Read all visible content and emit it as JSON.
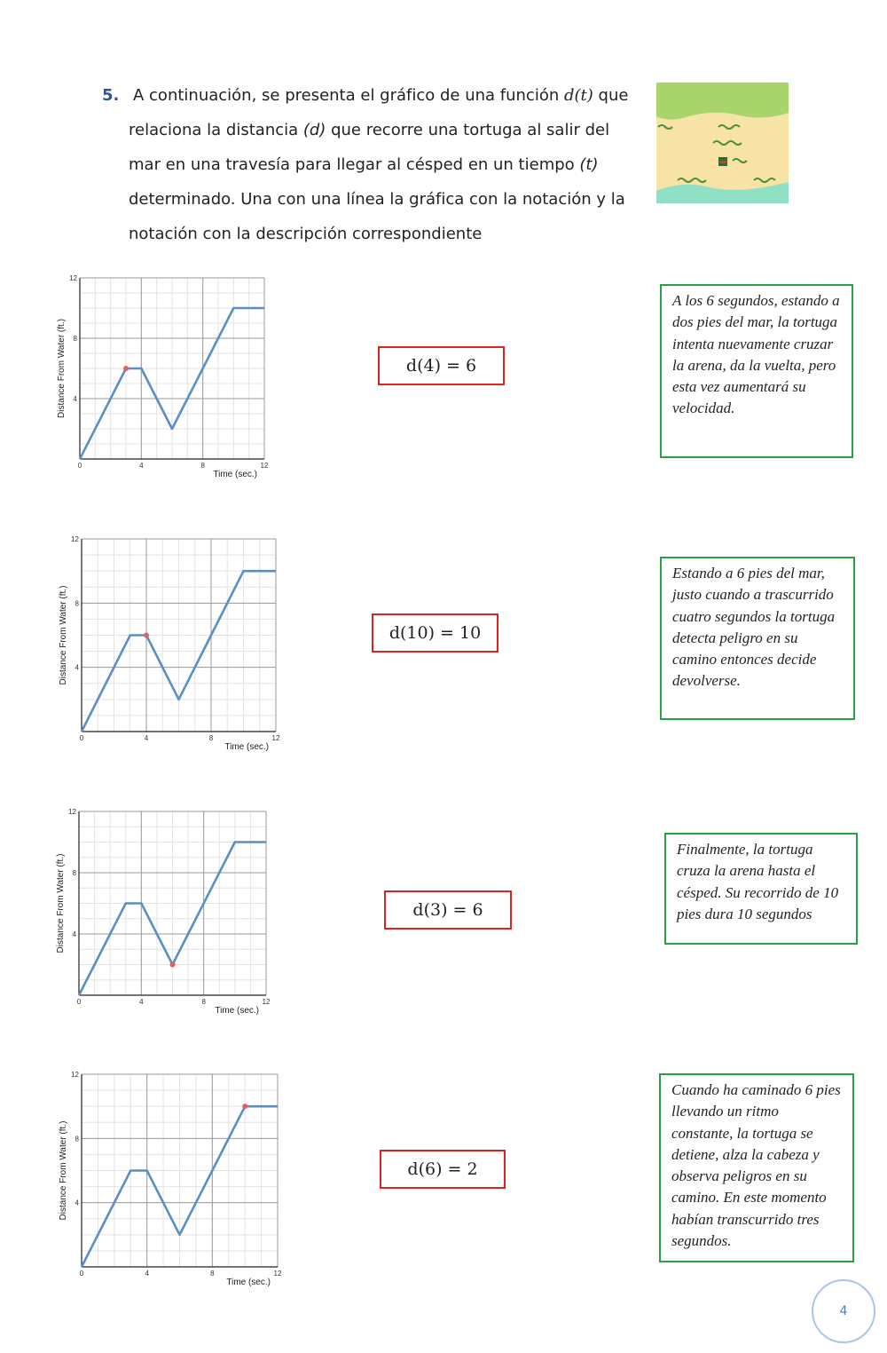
{
  "question": {
    "number": "5.",
    "text_1": "A continuación, se presenta el gráfico de una función ",
    "math_1": "d(t)",
    "text_2": " que relaciona la distancia ",
    "italic_1": "(d)",
    "text_3": " que recorre una tortuga al salir del mar en una travesía para llegar al césped en un tiempo ",
    "italic_2": "(t)",
    "text_4": " determinado. Una con una línea la gráfica con la notación y la notación con la descripción correspondiente"
  },
  "chart_data": [
    {
      "type": "line",
      "x_label": "Time (sec.)",
      "y_label": "Distance From Water (ft.)",
      "x": [
        0,
        3,
        4,
        6,
        10,
        12
      ],
      "values": [
        0,
        6,
        6,
        2,
        10,
        10
      ],
      "color": "#5b8ec4",
      "xlim": [
        0,
        12
      ],
      "ylim": [
        0,
        12
      ],
      "xticks": [
        0,
        4,
        8,
        12
      ],
      "yticks": [
        4,
        8,
        12
      ],
      "grid": true,
      "highlight": {
        "x": 3,
        "y": 6,
        "color": "#e06060"
      }
    },
    {
      "type": "line",
      "x_label": "Time (sec.)",
      "y_label": "Distance From Water (ft.)",
      "x": [
        0,
        3,
        4,
        6,
        10,
        12
      ],
      "values": [
        0,
        6,
        6,
        2,
        10,
        10
      ],
      "color": "#5b8ec4",
      "xlim": [
        0,
        12
      ],
      "ylim": [
        0,
        12
      ],
      "xticks": [
        0,
        4,
        8,
        12
      ],
      "yticks": [
        4,
        8,
        12
      ],
      "grid": true,
      "highlight": {
        "x": 4,
        "y": 6,
        "color": "#e06060"
      }
    },
    {
      "type": "line",
      "x_label": "Time (sec.)",
      "y_label": "Distance From Water (ft.)",
      "x": [
        0,
        3,
        4,
        6,
        10,
        12
      ],
      "values": [
        0,
        6,
        6,
        2,
        10,
        10
      ],
      "color": "#5b8ec4",
      "xlim": [
        0,
        12
      ],
      "ylim": [
        0,
        12
      ],
      "xticks": [
        0,
        4,
        8,
        12
      ],
      "yticks": [
        4,
        8,
        12
      ],
      "grid": true,
      "highlight": {
        "x": 6,
        "y": 2,
        "color": "#e06060"
      }
    },
    {
      "type": "line",
      "x_label": "Time (sec.)",
      "y_label": "Distance From Water (ft.)",
      "x": [
        0,
        3,
        4,
        6,
        10,
        12
      ],
      "values": [
        0,
        6,
        6,
        2,
        10,
        10
      ],
      "color": "#5b8ec4",
      "xlim": [
        0,
        12
      ],
      "ylim": [
        0,
        12
      ],
      "xticks": [
        0,
        4,
        8,
        12
      ],
      "yticks": [
        4,
        8,
        12
      ],
      "grid": true,
      "highlight": {
        "x": 10,
        "y": 10,
        "color": "#e06060"
      }
    }
  ],
  "notations": [
    "d(4) = 6",
    "d(10) = 10",
    "d(3) = 6",
    "d(6) = 2"
  ],
  "descriptions": [
    "A los 6 segundos, estando a dos pies del mar, la tortuga intenta nuevamente cruzar la arena, da la vuelta, pero esta vez aumentará su velocidad.",
    "Estando a 6 pies del mar, justo cuando a trascurrido cuatro segundos la tortuga detecta peligro en su camino entonces decide devolverse.",
    "Finalmente, la tortuga cruza la arena hasta el césped. Su recorrido de 10 pies dura 10 segundos",
    "Cuando ha caminado 6 pies llevando un ritmo constante, la tortuga se detiene, alza la cabeza y observa peligros en su camino. En este momento habían transcurrido tres segundos."
  ],
  "page_number": "4"
}
